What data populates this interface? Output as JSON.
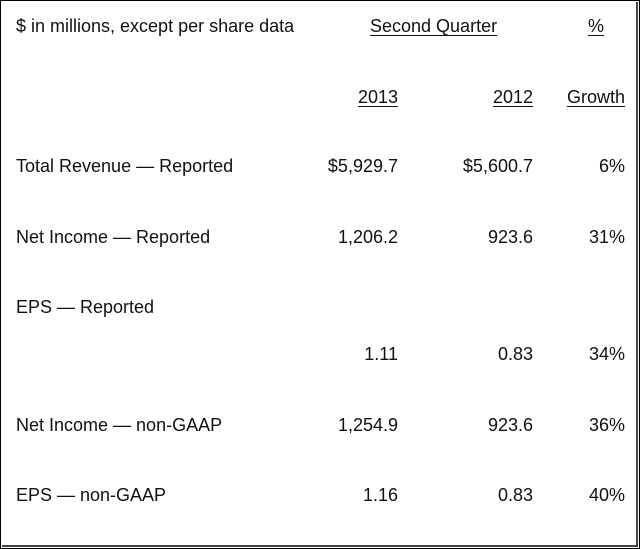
{
  "header": {
    "units_label": "$ in millions, except per share data",
    "period_label": "Second Quarter",
    "percent_label": "%"
  },
  "columns": {
    "year_current": "2013",
    "year_prior": "2012",
    "growth": "Growth"
  },
  "rows": [
    {
      "label": "Total Revenue — Reported",
      "v2013": "$5,929.7",
      "v2012": "$5,600.7",
      "growth": "6%"
    },
    {
      "label": "Net Income — Reported",
      "v2013": "1,206.2",
      "v2012": "923.6",
      "growth": "31%"
    },
    {
      "label": "EPS — Reported",
      "v2013": "1.11",
      "v2012": "0.83",
      "growth": "34%"
    },
    {
      "label": "Net Income — non-GAAP",
      "v2013": "1,254.9",
      "v2012": "923.6",
      "growth": "36%"
    },
    {
      "label": "EPS — non-GAAP",
      "v2013": "1.16",
      "v2012": "0.83",
      "growth": "40%"
    }
  ]
}
